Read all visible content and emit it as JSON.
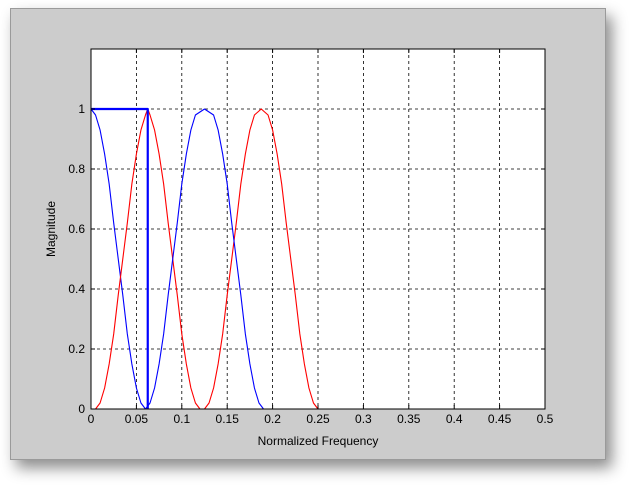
{
  "chart_data": {
    "type": "line",
    "title": "",
    "xlabel": "Normalized Frequency",
    "ylabel": "Magnitude",
    "xlim": [
      0,
      0.5
    ],
    "ylim": [
      0,
      1.2
    ],
    "xticks": [
      0,
      0.05,
      0.1,
      0.15,
      0.2,
      0.25,
      0.3,
      0.35,
      0.4,
      0.45,
      0.5
    ],
    "xtick_labels": [
      "0",
      "0.05",
      "0.1",
      "0.15",
      "0.2",
      "0.25",
      "0.3",
      "0.35",
      "0.4",
      "0.45",
      "0.5"
    ],
    "yticks": [
      0,
      0.2,
      0.4,
      0.6,
      0.8,
      1
    ],
    "ytick_labels": [
      "0",
      "0.2",
      "0.4",
      "0.6",
      "0.8",
      "1"
    ],
    "grid": true,
    "grid_style": "dashed",
    "series": [
      {
        "color": "#0000ff",
        "values": [
          [
            0,
            1
          ],
          [
            0.005,
            0.98
          ],
          [
            0.01,
            0.93
          ],
          [
            0.015,
            0.85
          ],
          [
            0.02,
            0.75
          ],
          [
            0.025,
            0.62
          ],
          [
            0.03,
            0.5
          ],
          [
            0.035,
            0.38
          ],
          [
            0.04,
            0.25
          ],
          [
            0.045,
            0.15
          ],
          [
            0.05,
            0.07
          ],
          [
            0.055,
            0.02
          ],
          [
            0.06,
            0
          ],
          [
            0.5,
            0
          ]
        ]
      },
      {
        "color": "#ff0000",
        "values": [
          [
            0,
            0
          ],
          [
            0.005,
            0
          ],
          [
            0.01,
            0.02
          ],
          [
            0.015,
            0.07
          ],
          [
            0.02,
            0.15
          ],
          [
            0.025,
            0.25
          ],
          [
            0.03,
            0.38
          ],
          [
            0.035,
            0.5
          ],
          [
            0.04,
            0.62
          ],
          [
            0.045,
            0.75
          ],
          [
            0.05,
            0.85
          ],
          [
            0.055,
            0.93
          ],
          [
            0.06,
            0.98
          ],
          [
            0.0625,
            1
          ],
          [
            0.065,
            0.98
          ],
          [
            0.07,
            0.93
          ],
          [
            0.075,
            0.85
          ],
          [
            0.08,
            0.75
          ],
          [
            0.085,
            0.62
          ],
          [
            0.09,
            0.5
          ],
          [
            0.095,
            0.38
          ],
          [
            0.1,
            0.25
          ],
          [
            0.105,
            0.15
          ],
          [
            0.11,
            0.07
          ],
          [
            0.115,
            0.02
          ],
          [
            0.12,
            0
          ],
          [
            0.125,
            0
          ],
          [
            0.13,
            0.02
          ],
          [
            0.135,
            0.07
          ],
          [
            0.14,
            0.15
          ],
          [
            0.145,
            0.25
          ],
          [
            0.15,
            0.38
          ],
          [
            0.155,
            0.5
          ],
          [
            0.16,
            0.62
          ],
          [
            0.165,
            0.75
          ],
          [
            0.17,
            0.85
          ],
          [
            0.175,
            0.93
          ],
          [
            0.18,
            0.98
          ],
          [
            0.1875,
            1
          ],
          [
            0.195,
            0.98
          ],
          [
            0.2,
            0.93
          ],
          [
            0.205,
            0.85
          ],
          [
            0.21,
            0.75
          ],
          [
            0.215,
            0.62
          ],
          [
            0.22,
            0.5
          ],
          [
            0.225,
            0.38
          ],
          [
            0.23,
            0.25
          ],
          [
            0.235,
            0.15
          ],
          [
            0.24,
            0.07
          ],
          [
            0.245,
            0.02
          ],
          [
            0.25,
            0
          ],
          [
            0.5,
            0
          ]
        ]
      },
      {
        "color": "#0000ff",
        "values": [
          [
            0.06,
            0
          ],
          [
            0.065,
            0.02
          ],
          [
            0.07,
            0.07
          ],
          [
            0.075,
            0.15
          ],
          [
            0.08,
            0.25
          ],
          [
            0.085,
            0.38
          ],
          [
            0.09,
            0.5
          ],
          [
            0.095,
            0.62
          ],
          [
            0.1,
            0.75
          ],
          [
            0.105,
            0.85
          ],
          [
            0.11,
            0.93
          ],
          [
            0.115,
            0.98
          ],
          [
            0.125,
            1
          ],
          [
            0.135,
            0.98
          ],
          [
            0.14,
            0.93
          ],
          [
            0.145,
            0.85
          ],
          [
            0.15,
            0.75
          ],
          [
            0.155,
            0.62
          ],
          [
            0.16,
            0.5
          ],
          [
            0.165,
            0.38
          ],
          [
            0.17,
            0.25
          ],
          [
            0.175,
            0.15
          ],
          [
            0.18,
            0.07
          ],
          [
            0.185,
            0.02
          ],
          [
            0.19,
            0
          ],
          [
            0.25,
            0
          ]
        ]
      }
    ],
    "ideal_lowpass": {
      "color": "#0000ff",
      "values": [
        [
          0,
          1
        ],
        [
          0.0625,
          1
        ],
        [
          0.0625,
          0
        ]
      ]
    }
  }
}
